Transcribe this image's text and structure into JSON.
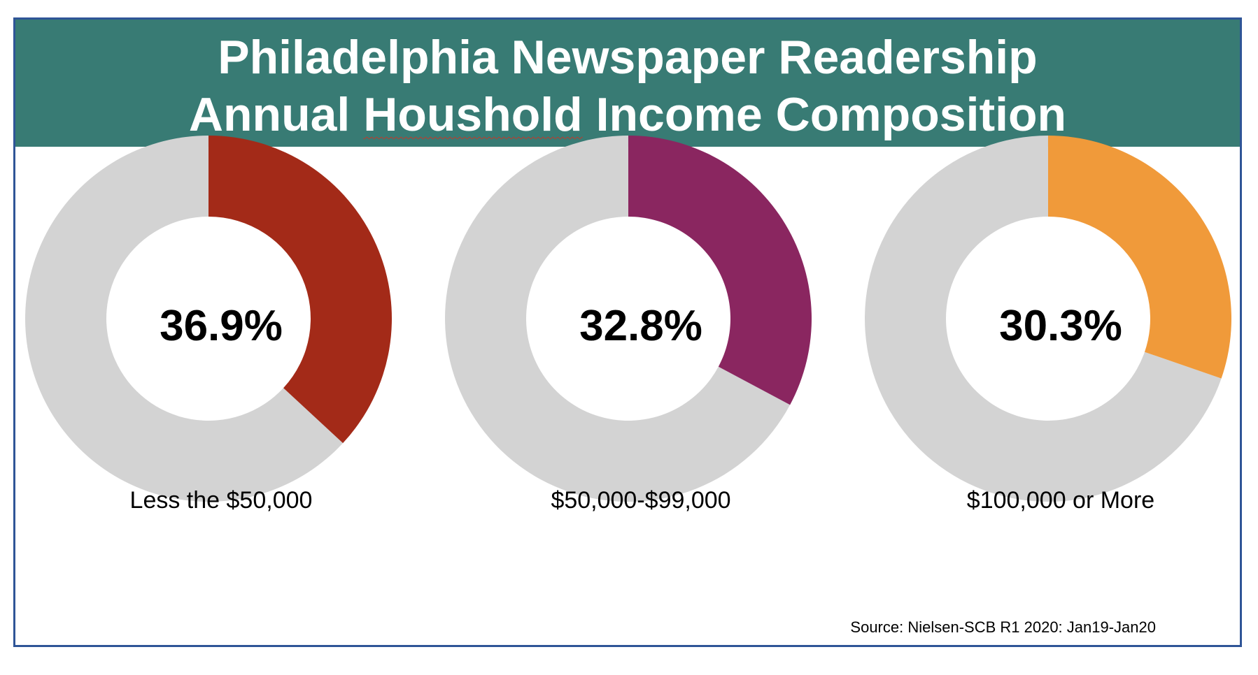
{
  "title": {
    "line1": "Philadelphia Newspaper Readership",
    "line2_before": "Annual ",
    "line2_misspelled": "Houshold",
    "line2_after": " Income Composition"
  },
  "colors": {
    "header_bg": "#387b74",
    "frame_border": "#2f5597",
    "remainder": "#d3d3d3"
  },
  "chart_data": [
    {
      "type": "pie",
      "variant": "donut",
      "category": "Less the $50,000",
      "value": 36.9,
      "label": "36.9%",
      "color": "#a32a18"
    },
    {
      "type": "pie",
      "variant": "donut",
      "category": "$50,000-$99,000",
      "value": 32.8,
      "label": "32.8%",
      "color": "#8a2660"
    },
    {
      "type": "pie",
      "variant": "donut",
      "category": "$100,000 or More",
      "value": 30.3,
      "label": "30.3%",
      "color": "#f09a3a"
    }
  ],
  "source": "Source: Nielsen-SCB R1 2020: Jan19-Jan20"
}
